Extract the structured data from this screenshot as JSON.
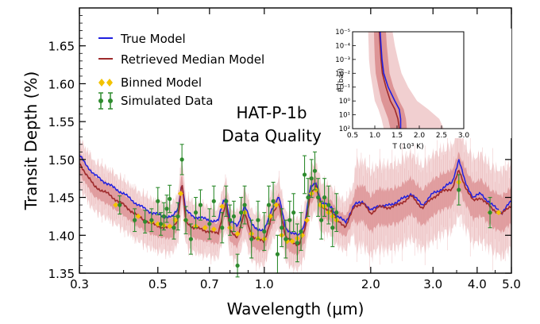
{
  "chart_data": [
    {
      "type": "line",
      "title": "HAT-P-1b",
      "subtitle": "Data Quality",
      "xlabel": "Wavelength (μm)",
      "ylabel": "Transit Depth (%)",
      "xscale": "log",
      "xlim": [
        0.3,
        5.0
      ],
      "ylim": [
        1.35,
        1.7
      ],
      "xticks": [
        0.3,
        0.5,
        0.7,
        1.0,
        2.0,
        3.0,
        4.0,
        5.0
      ],
      "xtick_labels": [
        "0.3",
        "0.5",
        "0.7",
        "1.0",
        "2.0",
        "3.0",
        "4.0",
        "5.0"
      ],
      "yticks": [
        1.35,
        1.4,
        1.45,
        1.5,
        1.55,
        1.6,
        1.65
      ],
      "ytick_labels": [
        "1.35",
        "1.40",
        "1.45",
        "1.50",
        "1.55",
        "1.60",
        "1.65"
      ],
      "legend_position": "top-left",
      "legend": [
        {
          "label": "True Model",
          "color": "#1f1fe0",
          "marker": "line"
        },
        {
          "label": "Retrieved Median Model",
          "color": "#9e2a2b",
          "marker": "line"
        },
        {
          "label": "Binned Model",
          "color": "#f2c200",
          "marker": "diamond"
        },
        {
          "label": "Simulated Data",
          "color": "#2e8b2e",
          "marker": "errorbar"
        }
      ],
      "series": [
        {
          "name": "True Model",
          "x": [
            0.3,
            0.33,
            0.36,
            0.4,
            0.44,
            0.48,
            0.52,
            0.55,
            0.57,
            0.585,
            0.6,
            0.63,
            0.66,
            0.7,
            0.74,
            0.765,
            0.78,
            0.8,
            0.84,
            0.88,
            0.92,
            0.96,
            1.0,
            1.05,
            1.1,
            1.15,
            1.2,
            1.25,
            1.3,
            1.35,
            1.4,
            1.45,
            1.5,
            1.55,
            1.6,
            1.7,
            1.8,
            1.9,
            2.0,
            2.1,
            2.2,
            2.4,
            2.6,
            2.8,
            3.0,
            3.2,
            3.4,
            3.55,
            3.7,
            3.9,
            4.1,
            4.4,
            4.7,
            5.0
          ],
          "y": [
            1.505,
            1.48,
            1.468,
            1.455,
            1.44,
            1.43,
            1.425,
            1.424,
            1.435,
            1.47,
            1.432,
            1.425,
            1.423,
            1.42,
            1.418,
            1.445,
            1.45,
            1.418,
            1.412,
            1.44,
            1.415,
            1.408,
            1.405,
            1.435,
            1.45,
            1.41,
            1.402,
            1.4,
            1.415,
            1.462,
            1.47,
            1.442,
            1.44,
            1.438,
            1.425,
            1.418,
            1.44,
            1.445,
            1.432,
            1.44,
            1.438,
            1.445,
            1.455,
            1.44,
            1.455,
            1.462,
            1.47,
            1.5,
            1.47,
            1.45,
            1.455,
            1.44,
            1.43,
            1.445
          ]
        },
        {
          "name": "Retrieved Median Model",
          "x": [
            0.3,
            0.33,
            0.36,
            0.4,
            0.44,
            0.48,
            0.52,
            0.55,
            0.57,
            0.585,
            0.6,
            0.63,
            0.66,
            0.7,
            0.74,
            0.765,
            0.78,
            0.8,
            0.84,
            0.88,
            0.92,
            0.96,
            1.0,
            1.05,
            1.1,
            1.15,
            1.2,
            1.25,
            1.3,
            1.35,
            1.4,
            1.45,
            1.5,
            1.55,
            1.6,
            1.7,
            1.8,
            1.9,
            2.0,
            2.1,
            2.2,
            2.4,
            2.6,
            2.8,
            3.0,
            3.2,
            3.4,
            3.55,
            3.7,
            3.9,
            4.1,
            4.4,
            4.7,
            5.0
          ],
          "y": [
            1.495,
            1.465,
            1.455,
            1.44,
            1.425,
            1.415,
            1.41,
            1.41,
            1.422,
            1.47,
            1.418,
            1.41,
            1.408,
            1.405,
            1.402,
            1.43,
            1.443,
            1.405,
            1.398,
            1.43,
            1.4,
            1.394,
            1.392,
            1.425,
            1.442,
            1.398,
            1.39,
            1.388,
            1.405,
            1.455,
            1.465,
            1.436,
            1.435,
            1.432,
            1.42,
            1.412,
            1.438,
            1.443,
            1.428,
            1.438,
            1.436,
            1.44,
            1.452,
            1.436,
            1.45,
            1.458,
            1.462,
            1.485,
            1.465,
            1.445,
            1.45,
            1.435,
            1.428,
            1.44
          ]
        },
        {
          "name": "Binned Model",
          "x": [
            0.38,
            0.44,
            0.48,
            0.5,
            0.52,
            0.54,
            0.56,
            0.58,
            0.6,
            0.64,
            0.68,
            0.72,
            0.76,
            0.8,
            0.84,
            0.88,
            0.92,
            0.96,
            1.0,
            1.04,
            1.08,
            1.12,
            1.16,
            1.2,
            1.24,
            1.28,
            1.32,
            1.36,
            1.4,
            1.44,
            1.48,
            1.52,
            1.56,
            1.6,
            3.55,
            4.35,
            4.6
          ],
          "y": [
            1.44,
            1.425,
            1.418,
            1.415,
            1.413,
            1.412,
            1.42,
            1.455,
            1.42,
            1.412,
            1.41,
            1.408,
            1.438,
            1.41,
            1.402,
            1.43,
            1.402,
            1.396,
            1.395,
            1.425,
            1.44,
            1.4,
            1.392,
            1.392,
            1.396,
            1.4,
            1.42,
            1.455,
            1.46,
            1.44,
            1.438,
            1.43,
            1.425,
            1.42,
            1.47,
            1.43,
            1.43
          ]
        },
        {
          "name": "Simulated Data",
          "x": [
            0.39,
            0.43,
            0.46,
            0.48,
            0.5,
            0.51,
            0.52,
            0.53,
            0.54,
            0.555,
            0.57,
            0.585,
            0.6,
            0.62,
            0.64,
            0.66,
            0.7,
            0.72,
            0.76,
            0.78,
            0.8,
            0.82,
            0.84,
            0.86,
            0.88,
            0.92,
            0.96,
            1.0,
            1.03,
            1.06,
            1.09,
            1.12,
            1.15,
            1.18,
            1.21,
            1.24,
            1.27,
            1.3,
            1.33,
            1.36,
            1.39,
            1.42,
            1.45,
            1.48,
            1.52,
            1.56,
            1.6,
            3.55,
            4.35
          ],
          "y": [
            1.44,
            1.42,
            1.418,
            1.42,
            1.445,
            1.415,
            1.425,
            1.435,
            1.448,
            1.41,
            1.425,
            1.5,
            1.42,
            1.395,
            1.43,
            1.44,
            1.415,
            1.445,
            1.41,
            1.445,
            1.42,
            1.425,
            1.36,
            1.43,
            1.44,
            1.395,
            1.42,
            1.405,
            1.44,
            1.445,
            1.375,
            1.41,
            1.395,
            1.42,
            1.43,
            1.39,
            1.405,
            1.48,
            1.45,
            1.475,
            1.485,
            1.45,
            1.42,
            1.45,
            1.44,
            1.41,
            1.43,
            1.46,
            1.43
          ],
          "err": [
            0.012,
            0.015,
            0.015,
            0.015,
            0.018,
            0.015,
            0.018,
            0.018,
            0.018,
            0.015,
            0.018,
            0.02,
            0.018,
            0.02,
            0.02,
            0.02,
            0.02,
            0.02,
            0.02,
            0.02,
            0.02,
            0.02,
            0.015,
            0.02,
            0.025,
            0.025,
            0.025,
            0.025,
            0.025,
            0.025,
            0.025,
            0.025,
            0.025,
            0.025,
            0.025,
            0.025,
            0.025,
            0.025,
            0.025,
            0.025,
            0.025,
            0.025,
            0.025,
            0.025,
            0.025,
            0.025,
            0.025,
            0.02,
            0.02
          ]
        }
      ],
      "uncertainty_band": {
        "name": "Retrieved Model 1σ/2σ spread",
        "color": "#e8a8aa",
        "lower_offset": [
          -0.012,
          -0.03
        ],
        "upper_offset": [
          0.012,
          0.03
        ]
      },
      "colors": {
        "true": "#1f1fe0",
        "median": "#9e2a2b",
        "binned": "#f2c200",
        "data": "#2e8b2e",
        "band_inner": "#d98a8c",
        "band_outer": "#f1cfd0"
      }
    },
    {
      "type": "line",
      "title": "",
      "xlabel": "T (10³ K)",
      "ylabel": "P (bar)",
      "xlim": [
        0.5,
        3.0
      ],
      "xticks": [
        0.5,
        1.0,
        1.5,
        2.0,
        2.5,
        3.0
      ],
      "xtick_labels": [
        "0.5",
        "1.0",
        "1.5",
        "2.0",
        "2.5",
        "3.0"
      ],
      "ylog_exponents": [
        -5,
        2
      ],
      "ytick_labels": [
        "10⁻⁵",
        "10⁻⁴",
        "10⁻³",
        "10⁻²",
        "10⁻¹",
        "10⁰",
        "10¹",
        "10²"
      ],
      "series": [
        {
          "name": "True Profile",
          "T": [
            1.12,
            1.14,
            1.16,
            1.2,
            1.3,
            1.45,
            1.55,
            1.58,
            1.58
          ],
          "logP": [
            -5,
            -4,
            -3,
            -2,
            -1,
            0,
            0.6,
            1.3,
            2
          ]
        },
        {
          "name": "Retrieved Median Profile",
          "T": [
            1.1,
            1.12,
            1.14,
            1.17,
            1.25,
            1.35,
            1.45,
            1.52,
            1.55
          ],
          "logP": [
            -5,
            -4,
            -3,
            -2,
            -1,
            0,
            0.6,
            1.3,
            2
          ]
        },
        {
          "name": "1-sigma band",
          "T_low": [
            0.98,
            0.99,
            1.0,
            1.02,
            1.08,
            1.15,
            1.22,
            1.3,
            1.35
          ],
          "T_high": [
            1.25,
            1.27,
            1.3,
            1.33,
            1.42,
            1.55,
            1.65,
            1.7,
            1.72
          ],
          "logP": [
            -5,
            -4,
            -3,
            -2,
            -1,
            0,
            0.6,
            1.3,
            2
          ]
        },
        {
          "name": "2-sigma band",
          "T_low": [
            0.85,
            0.86,
            0.87,
            0.9,
            0.95,
            1.0,
            1.08,
            1.15,
            1.2
          ],
          "T_high": [
            1.4,
            1.45,
            1.52,
            1.6,
            1.75,
            1.95,
            2.2,
            2.45,
            2.55
          ],
          "logP": [
            -5,
            -4,
            -3,
            -2,
            -1,
            0,
            0.6,
            1.3,
            2
          ]
        }
      ],
      "colors": {
        "true": "#1f1fe0",
        "median": "#9e2a2b",
        "band_inner": "#d98a8c",
        "band_outer": "#f1cfd0"
      }
    }
  ]
}
